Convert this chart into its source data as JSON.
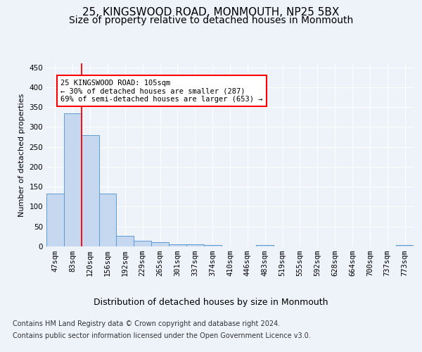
{
  "title1": "25, KINGSWOOD ROAD, MONMOUTH, NP25 5BX",
  "title2": "Size of property relative to detached houses in Monmouth",
  "xlabel": "Distribution of detached houses by size in Monmouth",
  "ylabel": "Number of detached properties",
  "bar_labels": [
    "47sqm",
    "83sqm",
    "120sqm",
    "156sqm",
    "192sqm",
    "229sqm",
    "265sqm",
    "301sqm",
    "337sqm",
    "374sqm",
    "410sqm",
    "446sqm",
    "483sqm",
    "519sqm",
    "555sqm",
    "592sqm",
    "628sqm",
    "664sqm",
    "700sqm",
    "737sqm",
    "773sqm"
  ],
  "bar_values": [
    133,
    335,
    280,
    132,
    26,
    15,
    10,
    6,
    5,
    3,
    0,
    0,
    4,
    0,
    0,
    0,
    0,
    0,
    0,
    0,
    4
  ],
  "bar_color": "#c5d8f0",
  "bar_edge_color": "#5b9bd5",
  "red_line_x": 1.5,
  "annotation_box_text": "25 KINGSWOOD ROAD: 105sqm\n← 30% of detached houses are smaller (287)\n69% of semi-detached houses are larger (653) →",
  "ylim": [
    0,
    460
  ],
  "yticks": [
    0,
    50,
    100,
    150,
    200,
    250,
    300,
    350,
    400,
    450
  ],
  "background_color": "#eef2f9",
  "plot_bg_color": "#eef2f9",
  "footer_line1": "Contains HM Land Registry data © Crown copyright and database right 2024.",
  "footer_line2": "Contains public sector information licensed under the Open Government Licence v3.0.",
  "title1_fontsize": 11,
  "title2_fontsize": 10,
  "xlabel_fontsize": 9,
  "ylabel_fontsize": 8,
  "tick_fontsize": 7.5,
  "footer_fontsize": 7
}
